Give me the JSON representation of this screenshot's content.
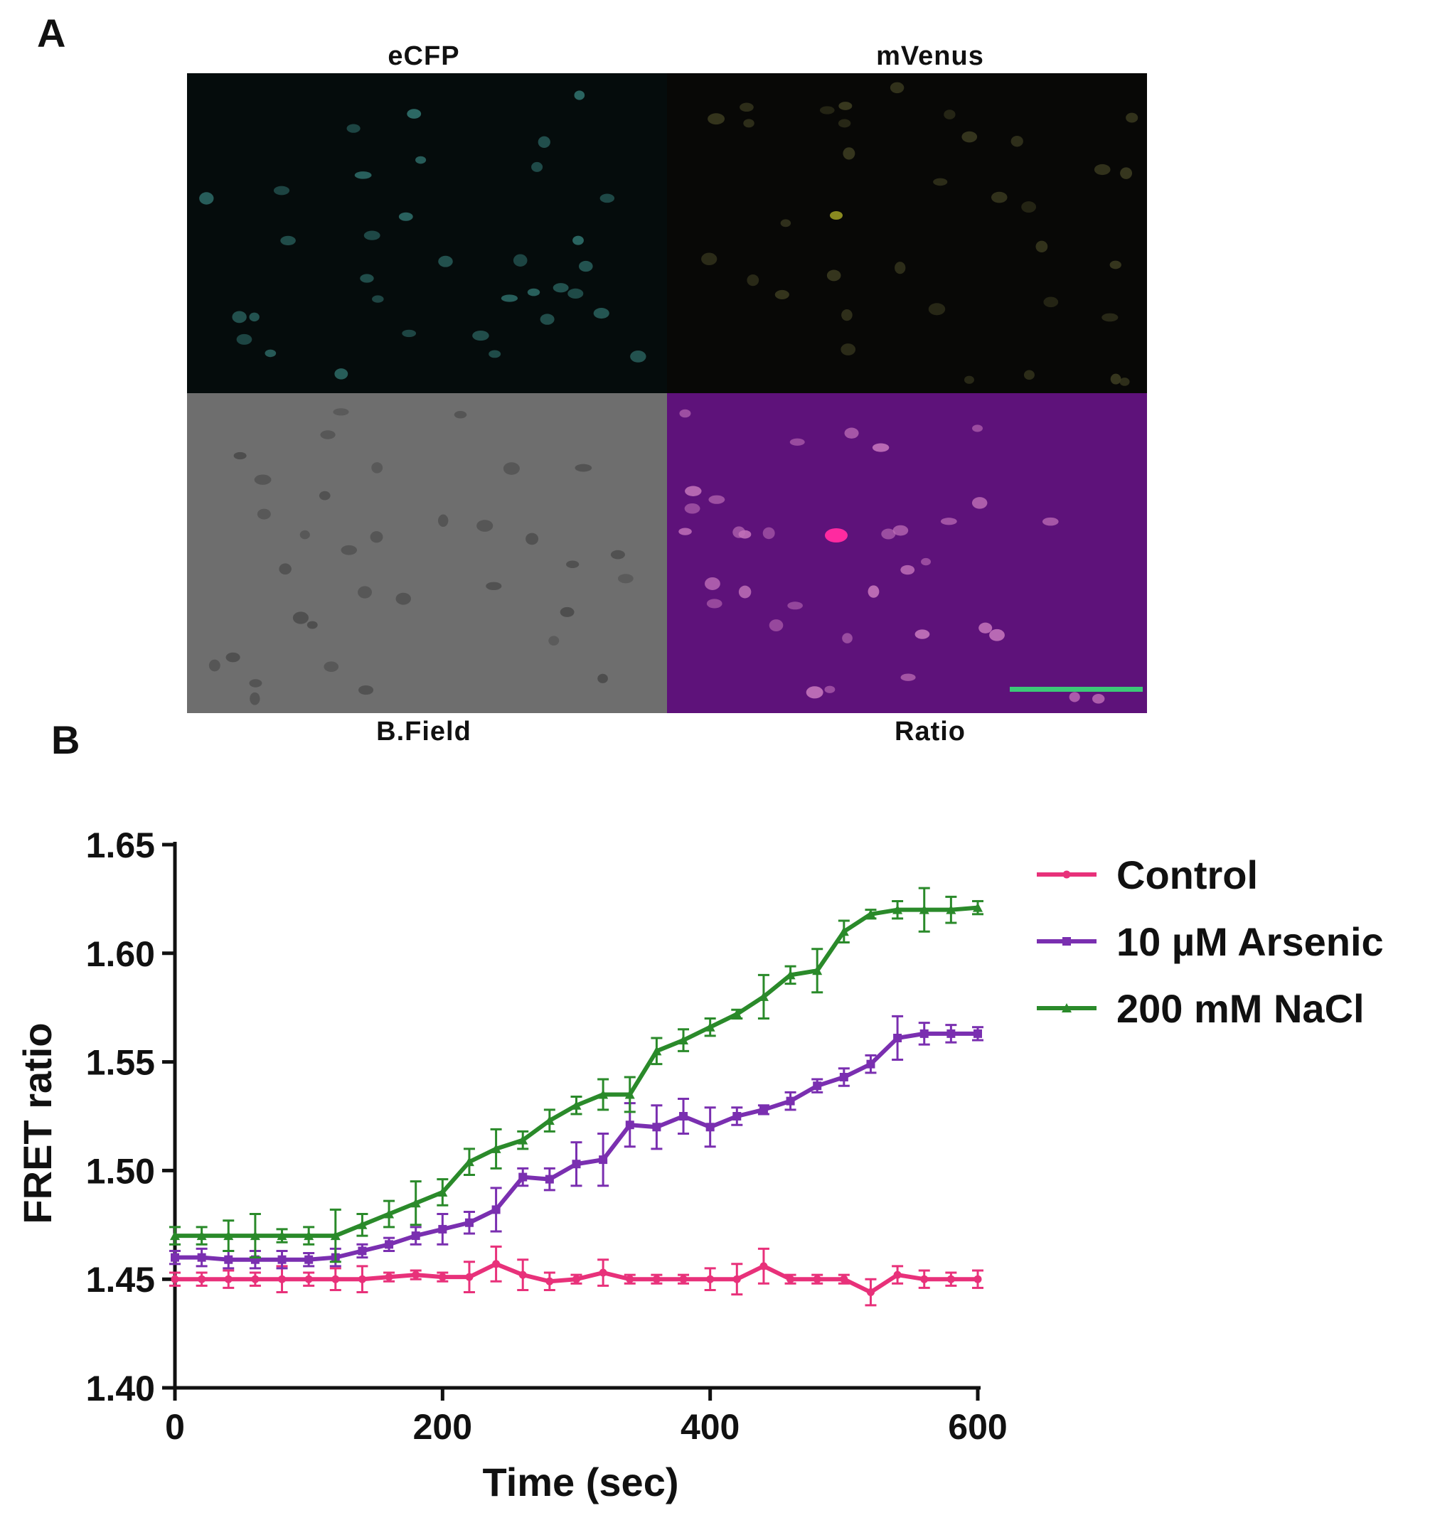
{
  "panel_a": {
    "letter": "A",
    "images": [
      {
        "label": "eCFP",
        "bg": "#050c0c",
        "cell": "#2f6e6a"
      },
      {
        "label": "mVenus",
        "bg": "#080806",
        "cell": "#3a3a20"
      },
      {
        "label": "B.Field",
        "bg": "#6e6e6e",
        "cell": "#4c4c4c"
      },
      {
        "label": "Ratio",
        "bg": "#5e127a",
        "cell": "#c070b8"
      }
    ],
    "scale_bar_color": "#3cc878"
  },
  "panel_b": {
    "letter": "B"
  },
  "chart_data": {
    "type": "line",
    "xlabel": "Time (sec)",
    "ylabel": "FRET ratio",
    "xlim": [
      0,
      600
    ],
    "ylim": [
      1.4,
      1.65
    ],
    "x_ticks": [
      "0",
      "200",
      "400",
      "600"
    ],
    "y_ticks": [
      "1.40",
      "1.45",
      "1.50",
      "1.55",
      "1.60",
      "1.65"
    ],
    "legend_position": "right",
    "x": [
      0,
      20,
      40,
      60,
      80,
      100,
      120,
      140,
      160,
      180,
      200,
      220,
      240,
      260,
      280,
      300,
      320,
      340,
      360,
      380,
      400,
      420,
      440,
      460,
      480,
      500,
      520,
      540,
      560,
      580,
      600
    ],
    "series": [
      {
        "name": "Control",
        "color": "#e8317a",
        "marker": "circle",
        "values": [
          1.45,
          1.45,
          1.45,
          1.45,
          1.45,
          1.45,
          1.45,
          1.45,
          1.451,
          1.452,
          1.451,
          1.451,
          1.457,
          1.452,
          1.449,
          1.45,
          1.453,
          1.45,
          1.45,
          1.45,
          1.45,
          1.45,
          1.456,
          1.45,
          1.45,
          1.45,
          1.444,
          1.452,
          1.45,
          1.45,
          1.45
        ],
        "errors": [
          0.003,
          0.003,
          0.004,
          0.003,
          0.006,
          0.003,
          0.005,
          0.006,
          0.002,
          0.002,
          0.002,
          0.007,
          0.008,
          0.007,
          0.004,
          0.002,
          0.006,
          0.002,
          0.002,
          0.002,
          0.005,
          0.007,
          0.008,
          0.002,
          0.002,
          0.002,
          0.006,
          0.004,
          0.004,
          0.003,
          0.004
        ]
      },
      {
        "name": "10 µM Arsenic",
        "color": "#7a2fb0",
        "marker": "square",
        "values": [
          1.46,
          1.46,
          1.459,
          1.459,
          1.459,
          1.459,
          1.46,
          1.463,
          1.466,
          1.47,
          1.473,
          1.476,
          1.482,
          1.497,
          1.496,
          1.503,
          1.505,
          1.521,
          1.52,
          1.525,
          1.52,
          1.525,
          1.528,
          1.532,
          1.539,
          1.543,
          1.549,
          1.561,
          1.563,
          1.563,
          1.563
        ],
        "errors": [
          0.003,
          0.004,
          0.004,
          0.004,
          0.004,
          0.003,
          0.004,
          0.003,
          0.003,
          0.004,
          0.007,
          0.005,
          0.01,
          0.004,
          0.005,
          0.01,
          0.012,
          0.01,
          0.01,
          0.008,
          0.009,
          0.004,
          0.002,
          0.004,
          0.003,
          0.004,
          0.004,
          0.01,
          0.005,
          0.004,
          0.003
        ]
      },
      {
        "name": "200 mM NaCl",
        "color": "#2a8a2a",
        "marker": "triangle",
        "values": [
          1.47,
          1.47,
          1.47,
          1.47,
          1.47,
          1.47,
          1.47,
          1.475,
          1.48,
          1.485,
          1.49,
          1.504,
          1.51,
          1.514,
          1.523,
          1.53,
          1.535,
          1.535,
          1.555,
          1.56,
          1.566,
          1.572,
          1.58,
          1.59,
          1.592,
          1.61,
          1.618,
          1.62,
          1.62,
          1.62,
          1.621
        ],
        "errors": [
          0.004,
          0.004,
          0.007,
          0.01,
          0.003,
          0.004,
          0.012,
          0.005,
          0.006,
          0.01,
          0.006,
          0.006,
          0.009,
          0.004,
          0.005,
          0.004,
          0.007,
          0.008,
          0.006,
          0.005,
          0.004,
          0.002,
          0.01,
          0.004,
          0.01,
          0.005,
          0.002,
          0.004,
          0.01,
          0.006,
          0.003
        ]
      }
    ]
  }
}
